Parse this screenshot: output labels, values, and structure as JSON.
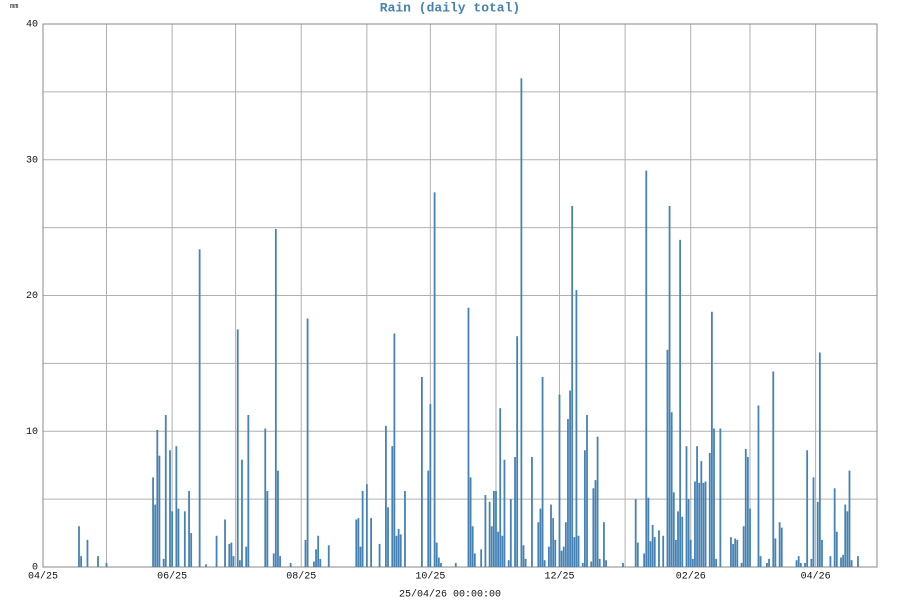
{
  "chart_data": {
    "type": "bar",
    "title": "Rain (daily total)",
    "y_label": "mm",
    "footer": "25/04/26 00:00:00",
    "color": "#4682b4",
    "grid": true,
    "xlim": [
      0,
      394
    ],
    "xticks": [
      {
        "value": 0,
        "label": "04/25"
      },
      {
        "value": 61,
        "label": "06/25"
      },
      {
        "value": 122,
        "label": "08/25"
      },
      {
        "value": 183,
        "label": "10/25"
      },
      {
        "value": 244,
        "label": "12/25"
      },
      {
        "value": 306,
        "label": "02/26"
      },
      {
        "value": 365,
        "label": "04/26"
      }
    ],
    "xminor": [
      30,
      91,
      153,
      214,
      275,
      334
    ],
    "ylim": [
      0,
      40
    ],
    "yticks": [
      0,
      10,
      20,
      30,
      40
    ],
    "yminor": [
      5,
      15,
      25,
      35
    ],
    "x": [
      17,
      18,
      21,
      26,
      30,
      52,
      53,
      54,
      55,
      57,
      58,
      60,
      61,
      63,
      64,
      67,
      69,
      70,
      74,
      77,
      82,
      86,
      88,
      89,
      90,
      92,
      93,
      94,
      96,
      97,
      105,
      106,
      109,
      110,
      111,
      112,
      117,
      124,
      125,
      128,
      129,
      130,
      131,
      135,
      148,
      149,
      150,
      151,
      153,
      155,
      159,
      162,
      163,
      165,
      166,
      167,
      168,
      169,
      171,
      179,
      182,
      183,
      185,
      186,
      187,
      188,
      195,
      201,
      202,
      203,
      204,
      207,
      209,
      211,
      212,
      213,
      214,
      215,
      216,
      217,
      218,
      220,
      221,
      223,
      224,
      226,
      227,
      228,
      231,
      234,
      235,
      236,
      237,
      239,
      240,
      241,
      242,
      244,
      245,
      246,
      247,
      248,
      249,
      250,
      251,
      252,
      253,
      255,
      256,
      257,
      259,
      260,
      261,
      262,
      263,
      265,
      266,
      274,
      280,
      281,
      284,
      285,
      286,
      287,
      288,
      289,
      291,
      293,
      295,
      296,
      297,
      298,
      299,
      300,
      301,
      302,
      304,
      305,
      306,
      307,
      308,
      309,
      310,
      311,
      312,
      313,
      315,
      316,
      317,
      318,
      320,
      325,
      326,
      327,
      328,
      330,
      331,
      332,
      333,
      334,
      338,
      339,
      342,
      343,
      345,
      346,
      348,
      349,
      356,
      357,
      358,
      360,
      361,
      363,
      364,
      366,
      367,
      368,
      372,
      374,
      375,
      377,
      378,
      379,
      380,
      381,
      382,
      385
    ],
    "values": [
      3.0,
      0.8,
      2.0,
      0.8,
      0.3,
      6.6,
      4.6,
      10.1,
      8.2,
      0.6,
      11.2,
      8.6,
      4.1,
      8.9,
      4.3,
      4.1,
      5.6,
      2.5,
      23.4,
      0.2,
      2.3,
      3.5,
      1.7,
      1.8,
      0.8,
      17.5,
      0.5,
      7.9,
      1.5,
      11.2,
      10.2,
      5.6,
      1.0,
      24.9,
      7.1,
      0.8,
      0.3,
      2.0,
      18.3,
      0.4,
      1.3,
      2.3,
      0.6,
      1.6,
      3.5,
      3.6,
      1.5,
      5.6,
      6.1,
      3.6,
      1.7,
      10.4,
      4.4,
      8.9,
      17.2,
      2.3,
      2.8,
      2.4,
      5.6,
      14.0,
      7.1,
      12.0,
      27.6,
      1.8,
      0.7,
      0.3,
      0.3,
      19.1,
      6.6,
      3.0,
      1.0,
      1.3,
      5.3,
      4.8,
      3.0,
      5.6,
      5.6,
      2.6,
      11.7,
      2.3,
      7.9,
      0.5,
      5.0,
      8.1,
      17.0,
      36.0,
      1.6,
      0.6,
      8.1,
      3.3,
      4.3,
      14.0,
      0.5,
      1.5,
      4.6,
      3.6,
      2.0,
      12.7,
      1.2,
      1.5,
      3.3,
      10.9,
      13.0,
      26.6,
      2.2,
      20.4,
      2.3,
      0.3,
      8.6,
      11.2,
      0.4,
      5.8,
      6.4,
      9.6,
      0.6,
      3.3,
      0.5,
      0.3,
      5.0,
      1.8,
      1.0,
      29.2,
      5.1,
      1.9,
      3.1,
      2.2,
      2.7,
      2.3,
      16.0,
      26.6,
      11.4,
      5.5,
      2.0,
      4.1,
      24.1,
      3.7,
      8.9,
      5.0,
      2.0,
      0.6,
      6.3,
      8.9,
      6.2,
      7.8,
      6.2,
      6.3,
      8.4,
      18.8,
      10.2,
      0.6,
      10.2,
      2.2,
      1.7,
      2.1,
      2.0,
      0.3,
      3.0,
      8.7,
      8.1,
      4.3,
      11.9,
      0.8,
      0.3,
      0.6,
      14.4,
      2.1,
      3.3,
      2.9,
      0.5,
      0.8,
      0.3,
      0.3,
      8.6,
      0.6,
      6.6,
      4.8,
      15.8,
      2.0,
      0.8,
      5.8,
      2.6,
      0.7,
      0.9,
      4.6,
      4.1,
      7.1,
      0.5,
      0.8
    ]
  }
}
